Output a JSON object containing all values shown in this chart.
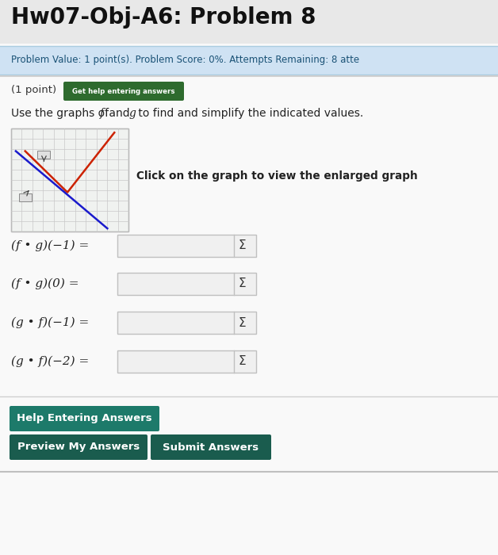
{
  "title": "Hw07-Obj-A6: Problem 8",
  "title_fontsize": 20,
  "title_color": "#111111",
  "title_fontweight": "bold",
  "bg_color": "#e8e8e8",
  "panel_bg": "#f9f9f9",
  "info_bar_bg": "#cfe2f3",
  "info_bar_text": "Problem Value: 1 point(s). Problem Score: 0%. Attempts Remaining: 8 atte",
  "info_bar_color": "#1a5276",
  "info_bar_fontsize": 8.5,
  "info_bar_bold_parts": [
    "Problem Value:",
    "Problem Score:",
    "Attempts Remaining:"
  ],
  "point_text": "(1 point)",
  "get_help_btn_text": "Get help entering answers",
  "get_help_btn_bg": "#2e6b2e",
  "get_help_btn_color": "#ffffff",
  "instruction_text": "Use the graphs of  and g to find and simplify the indicated values.",
  "click_text": "Click on the graph to view the enlarged graph",
  "equations": [
    "(f • g)(−1) =",
    "(f • g)(0) =",
    "(g • f)(−1) =",
    "(g • f)(−2) ="
  ],
  "help_btn_text": "Help Entering Answers",
  "preview_btn_text": "Preview My Answers",
  "submit_btn_text": "Submit Answers",
  "btn_bg_teal": "#1d7a6a",
  "btn_bg_dark": "#1a5c4e",
  "btn_text_color": "#ffffff",
  "input_box_color": "#f0f0f0",
  "input_box_border": "#c0c0c0",
  "sigma_color": "#333333",
  "graph_bg": "#f0f2f0",
  "graph_border": "#999999",
  "graph_grid": "#c8c8c8",
  "graph_red": "#cc2200",
  "graph_blue": "#1a1acc"
}
